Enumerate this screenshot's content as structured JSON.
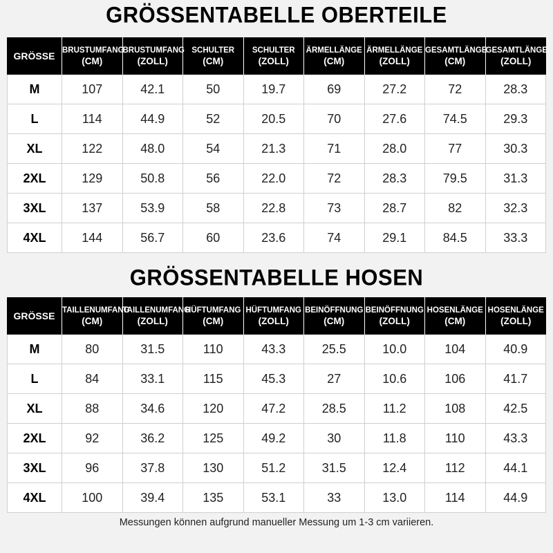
{
  "top": {
    "title": "GRÖSSENTABELLE OBERTEILE",
    "size_header": "GRÖSSE",
    "columns": [
      {
        "l1": "BRUSTUMFANG",
        "l2": "(CM)"
      },
      {
        "l1": "BRUSTUMFANG",
        "l2": "(ZOLL)"
      },
      {
        "l1": "SCHULTER",
        "l2": "(CM)"
      },
      {
        "l1": "SCHULTER",
        "l2": "(ZOLL)"
      },
      {
        "l1": "ÄRMELLÄNGE",
        "l2": "(CM)"
      },
      {
        "l1": "ÄRMELLÄNGE",
        "l2": "(ZOLL)"
      },
      {
        "l1": "GESAMTLÄNGE",
        "l2": "(CM)"
      },
      {
        "l1": "GESAMTLÄNGE",
        "l2": "(ZOLL)"
      }
    ],
    "rows": [
      [
        "M",
        "107",
        "42.1",
        "50",
        "19.7",
        "69",
        "27.2",
        "72",
        "28.3"
      ],
      [
        "L",
        "114",
        "44.9",
        "52",
        "20.5",
        "70",
        "27.6",
        "74.5",
        "29.3"
      ],
      [
        "XL",
        "122",
        "48.0",
        "54",
        "21.3",
        "71",
        "28.0",
        "77",
        "30.3"
      ],
      [
        "2XL",
        "129",
        "50.8",
        "56",
        "22.0",
        "72",
        "28.3",
        "79.5",
        "31.3"
      ],
      [
        "3XL",
        "137",
        "53.9",
        "58",
        "22.8",
        "73",
        "28.7",
        "82",
        "32.3"
      ],
      [
        "4XL",
        "144",
        "56.7",
        "60",
        "23.6",
        "74",
        "29.1",
        "84.5",
        "33.3"
      ]
    ]
  },
  "bottom": {
    "title": "GRÖSSENTABELLE HOSEN",
    "size_header": "GRÖSSE",
    "columns": [
      {
        "l1": "TAILLENUMFANG",
        "l2": "(CM)"
      },
      {
        "l1": "TAILLENUMFANG",
        "l2": "(ZOLL)"
      },
      {
        "l1": "HÜFTUMFANG",
        "l2": "(CM)"
      },
      {
        "l1": "HÜFTUMFANG",
        "l2": "(ZOLL)"
      },
      {
        "l1": "BEINÖFFNUNG",
        "l2": "(CM)"
      },
      {
        "l1": "BEINÖFFNUNG",
        "l2": "(ZOLL)"
      },
      {
        "l1": "HOSENLÄNGE",
        "l2": "(CM)"
      },
      {
        "l1": "HOSENLÄNGE",
        "l2": "(ZOLL)"
      }
    ],
    "rows": [
      [
        "M",
        "80",
        "31.5",
        "110",
        "43.3",
        "25.5",
        "10.0",
        "104",
        "40.9"
      ],
      [
        "L",
        "84",
        "33.1",
        "115",
        "45.3",
        "27",
        "10.6",
        "106",
        "41.7"
      ],
      [
        "XL",
        "88",
        "34.6",
        "120",
        "47.2",
        "28.5",
        "11.2",
        "108",
        "42.5"
      ],
      [
        "2XL",
        "92",
        "36.2",
        "125",
        "49.2",
        "30",
        "11.8",
        "110",
        "43.3"
      ],
      [
        "3XL",
        "96",
        "37.8",
        "130",
        "51.2",
        "31.5",
        "12.4",
        "112",
        "44.1"
      ],
      [
        "4XL",
        "100",
        "39.4",
        "135",
        "53.1",
        "33",
        "13.0",
        "114",
        "44.9"
      ]
    ]
  },
  "note": "Messungen können aufgrund manueller Messung um 1-3 cm variieren."
}
